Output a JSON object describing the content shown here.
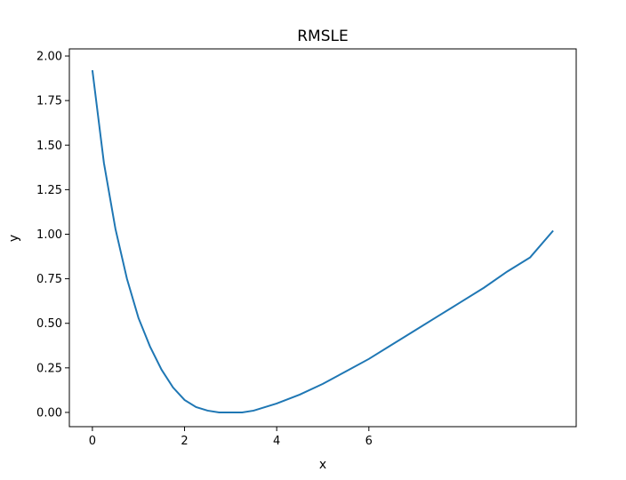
{
  "chart_data": {
    "type": "line",
    "title": "RMSLE",
    "xlabel": "x",
    "ylabel": "y",
    "xlim": [
      -0.5,
      10.5
    ],
    "ylim": [
      -0.08,
      2.04
    ],
    "x_ticks": [
      {
        "value": 0,
        "label": "0"
      },
      {
        "value": 2,
        "label": "2"
      },
      {
        "value": 4,
        "label": "4"
      },
      {
        "value": 6,
        "label": "6"
      }
    ],
    "y_ticks": [
      {
        "value": 0.0,
        "label": "0.00"
      },
      {
        "value": 0.25,
        "label": "0.25"
      },
      {
        "value": 0.5,
        "label": "0.50"
      },
      {
        "value": 0.75,
        "label": "0.75"
      },
      {
        "value": 1.0,
        "label": "1.00"
      },
      {
        "value": 1.25,
        "label": "1.25"
      },
      {
        "value": 1.5,
        "label": "1.50"
      },
      {
        "value": 1.75,
        "label": "1.75"
      },
      {
        "value": 2.0,
        "label": "2.00"
      }
    ],
    "grid": false,
    "series": [
      {
        "color": "#1f77b4",
        "x": [
          0.0,
          0.25,
          0.5,
          0.75,
          1.0,
          1.25,
          1.5,
          1.75,
          2.0,
          2.25,
          2.5,
          2.75,
          3.0,
          3.25,
          3.5,
          3.75,
          4.0,
          4.5,
          5.0,
          5.5,
          6.0,
          6.5,
          7.0,
          7.5,
          8.0,
          8.5,
          9.0,
          9.5,
          10.0
        ],
        "y": [
          1.92,
          1.4,
          1.03,
          0.75,
          0.53,
          0.37,
          0.24,
          0.14,
          0.07,
          0.03,
          0.01,
          0.0,
          0.0,
          0.0,
          0.01,
          0.03,
          0.05,
          0.1,
          0.16,
          0.23,
          0.3,
          0.38,
          0.46,
          0.54,
          0.62,
          0.7,
          0.79,
          0.87,
          1.02
        ]
      }
    ]
  }
}
